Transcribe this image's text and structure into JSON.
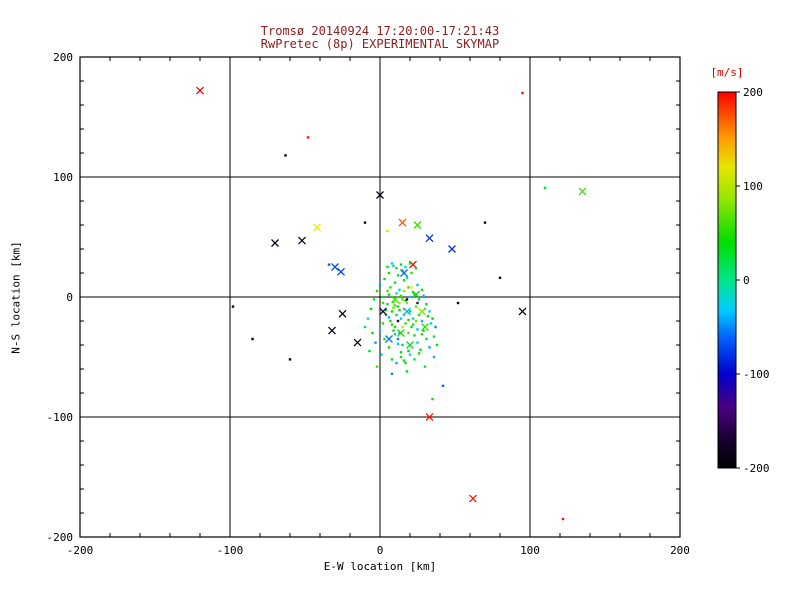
{
  "colors": {
    "background": "#ffffff",
    "axis": "#000000",
    "title_text": "#8b2020",
    "colorbar_title": "#d40000"
  },
  "chart_data": {
    "type": "scatter",
    "title": "Tromsø 20140924 17:20:00-17:21:43",
    "subtitle": "RwPretec (8p) EXPERIMENTAL SKYMAP",
    "xlabel": "E-W location [km]",
    "ylabel": "N-S location [km]",
    "xlim": [
      -200,
      200
    ],
    "ylim": [
      -200,
      200
    ],
    "xticks": [
      -200,
      -100,
      0,
      100,
      200
    ],
    "yticks": [
      -200,
      -100,
      0,
      100,
      200
    ],
    "grid_ticks": [
      -100,
      0,
      100
    ],
    "grid": true,
    "colorbar": {
      "title": "[m/s]",
      "min": -200,
      "max": 200,
      "ticks": [
        200,
        100,
        0,
        -100,
        -200
      ],
      "stops": [
        [
          0.0,
          "#000000"
        ],
        [
          0.08,
          "#1a0033"
        ],
        [
          0.16,
          "#4b0082"
        ],
        [
          0.25,
          "#0000cd"
        ],
        [
          0.35,
          "#0066ff"
        ],
        [
          0.42,
          "#00ccff"
        ],
        [
          0.5,
          "#00e68a"
        ],
        [
          0.6,
          "#00dd00"
        ],
        [
          0.72,
          "#99e600"
        ],
        [
          0.8,
          "#e6e600"
        ],
        [
          0.88,
          "#ff9900"
        ],
        [
          1.0,
          "#ff0000"
        ]
      ]
    },
    "value_units": "m/s",
    "points": [
      [
        -120,
        172,
        200,
        "x"
      ],
      [
        -48,
        133,
        195
      ],
      [
        -63,
        118,
        -190
      ],
      [
        95,
        170,
        195
      ],
      [
        135,
        88,
        55,
        "x"
      ],
      [
        110,
        91,
        25
      ],
      [
        -70,
        45,
        -185,
        "x"
      ],
      [
        -52,
        47,
        -185,
        "x"
      ],
      [
        -42,
        58,
        120,
        "x"
      ],
      [
        25,
        60,
        55,
        "x"
      ],
      [
        15,
        62,
        175,
        "x"
      ],
      [
        33,
        49,
        -80,
        "x"
      ],
      [
        0,
        85,
        -190,
        "x"
      ],
      [
        -30,
        25,
        -70,
        "x"
      ],
      [
        -26,
        21,
        -75,
        "x"
      ],
      [
        -34,
        27,
        -65
      ],
      [
        22,
        27,
        200,
        "x"
      ],
      [
        -25,
        -14,
        -190,
        "x"
      ],
      [
        -32,
        -28,
        -185,
        "x"
      ],
      [
        -15,
        -38,
        -185,
        "x"
      ],
      [
        33,
        -100,
        190,
        "x"
      ],
      [
        62,
        -168,
        195,
        "x"
      ],
      [
        122,
        -185,
        195
      ],
      [
        95,
        -12,
        -190,
        "x"
      ],
      [
        80,
        16,
        -185
      ],
      [
        48,
        40,
        -80,
        "x"
      ],
      [
        -85,
        -35,
        -185
      ],
      [
        -60,
        -52,
        -180
      ],
      [
        35,
        -85,
        45
      ],
      [
        42,
        -74,
        -60
      ],
      [
        70,
        62,
        -190
      ],
      [
        52,
        -5,
        -180
      ],
      [
        -10,
        62,
        -185
      ],
      [
        5,
        55,
        110
      ],
      [
        -98,
        -8,
        -185
      ],
      [
        18,
        -62,
        30
      ],
      [
        8,
        -64,
        -50
      ],
      [
        -2,
        -58,
        60
      ],
      [
        30,
        -58,
        20
      ],
      [
        36,
        -50,
        -40
      ],
      [
        6,
        2,
        40
      ],
      [
        9,
        -4,
        55
      ],
      [
        12,
        -8,
        30
      ],
      [
        15,
        -2,
        60
      ],
      [
        8,
        -12,
        45
      ],
      [
        11,
        -15,
        20
      ],
      [
        14,
        -18,
        -30
      ],
      [
        7,
        -20,
        50
      ],
      [
        10,
        -25,
        35
      ],
      [
        13,
        -30,
        -45
      ],
      [
        16,
        -10,
        70
      ],
      [
        5,
        -6,
        25
      ],
      [
        18,
        -5,
        80
      ],
      [
        20,
        -12,
        40
      ],
      [
        22,
        -18,
        -20
      ],
      [
        17,
        -22,
        55
      ],
      [
        9,
        -28,
        30
      ],
      [
        12,
        -35,
        -50
      ],
      [
        15,
        -40,
        20
      ],
      [
        19,
        -45,
        40
      ],
      [
        24,
        -8,
        65
      ],
      [
        26,
        -15,
        35
      ],
      [
        28,
        -20,
        -40
      ],
      [
        21,
        -25,
        50
      ],
      [
        23,
        -32,
        25
      ],
      [
        25,
        -38,
        -30
      ],
      [
        27,
        -44,
        45
      ],
      [
        30,
        -10,
        60
      ],
      [
        32,
        -16,
        30
      ],
      [
        34,
        -22,
        -25
      ],
      [
        29,
        -28,
        40
      ],
      [
        31,
        -35,
        20
      ],
      [
        33,
        -42,
        -45
      ],
      [
        4,
        -15,
        35
      ],
      [
        2,
        -22,
        50
      ],
      [
        0,
        -28,
        -30
      ],
      [
        3,
        -35,
        25
      ],
      [
        6,
        -42,
        40
      ],
      [
        1,
        -48,
        -20
      ],
      [
        8,
        -52,
        30
      ],
      [
        11,
        -55,
        -40
      ],
      [
        14,
        -50,
        25
      ],
      [
        17,
        -55,
        35
      ],
      [
        20,
        -48,
        -30
      ],
      [
        23,
        -52,
        20
      ],
      [
        26,
        -47,
        40
      ],
      [
        7,
        8,
        55
      ],
      [
        10,
        12,
        35
      ],
      [
        13,
        6,
        -25
      ],
      [
        16,
        14,
        45
      ],
      [
        19,
        8,
        60
      ],
      [
        22,
        4,
        30
      ],
      [
        25,
        10,
        -35
      ],
      [
        28,
        6,
        50
      ],
      [
        12,
        18,
        25
      ],
      [
        15,
        22,
        40
      ],
      [
        18,
        16,
        -30
      ],
      [
        21,
        20,
        55
      ],
      [
        24,
        24,
        35
      ],
      [
        9,
        26,
        -20
      ],
      [
        6,
        20,
        45
      ],
      [
        3,
        15,
        30
      ],
      [
        0,
        10,
        -40
      ],
      [
        -2,
        5,
        50
      ],
      [
        -4,
        -2,
        25
      ],
      [
        -6,
        -10,
        40
      ],
      [
        -8,
        -18,
        -30
      ],
      [
        -10,
        -25,
        20
      ],
      [
        -5,
        -30,
        35
      ],
      [
        -3,
        -38,
        -45
      ],
      [
        -7,
        -45,
        30
      ],
      [
        5,
        5,
        65
      ],
      [
        8,
        0,
        45
      ],
      [
        11,
        3,
        -30
      ],
      [
        14,
        1,
        55
      ],
      [
        17,
        -3,
        35
      ],
      [
        20,
        0,
        -25
      ],
      [
        23,
        2,
        50
      ],
      [
        26,
        -2,
        30
      ],
      [
        29,
        1,
        -40
      ],
      [
        10,
        -7,
        60
      ],
      [
        13,
        -11,
        40
      ],
      [
        16,
        -15,
        -30
      ],
      [
        19,
        -19,
        50
      ],
      [
        22,
        -23,
        25
      ],
      [
        25,
        -27,
        -35
      ],
      [
        28,
        -31,
        45
      ],
      [
        31,
        -6,
        30
      ],
      [
        33,
        -12,
        -20
      ],
      [
        35,
        -18,
        40
      ],
      [
        37,
        -25,
        -50
      ],
      [
        36,
        -33,
        25
      ],
      [
        38,
        -40,
        35
      ],
      [
        2,
        -5,
        55
      ],
      [
        4,
        -11,
        30
      ],
      [
        6,
        -17,
        -40
      ],
      [
        8,
        -23,
        50
      ],
      [
        10,
        -31,
        20
      ],
      [
        12,
        -39,
        -30
      ],
      [
        14,
        -46,
        40
      ],
      [
        16,
        -53,
        25
      ],
      [
        5,
        25,
        40
      ],
      [
        8,
        28,
        -30
      ],
      [
        11,
        24,
        55
      ],
      [
        14,
        27,
        35
      ],
      [
        17,
        25,
        -20
      ],
      [
        20,
        28,
        50
      ],
      [
        2,
        0,
        30
      ],
      [
        18,
        -2,
        -170
      ],
      [
        12,
        -20,
        -160
      ],
      [
        25,
        -5,
        -150
      ],
      [
        21,
        8,
        120
      ],
      [
        16,
        5,
        90
      ],
      [
        13,
        -5,
        100
      ],
      [
        9,
        -9,
        85
      ],
      [
        24,
        -20,
        75
      ],
      [
        19,
        -30,
        65
      ],
      [
        15,
        -25,
        95
      ],
      [
        10,
        -2,
        60,
        "x"
      ],
      [
        18,
        -12,
        -40,
        "x"
      ],
      [
        24,
        2,
        35,
        "x"
      ],
      [
        14,
        -30,
        50,
        "x"
      ],
      [
        6,
        -35,
        -55,
        "x"
      ],
      [
        28,
        -12,
        80,
        "x"
      ],
      [
        20,
        -40,
        30,
        "x"
      ],
      [
        2,
        -12,
        -170,
        "x"
      ],
      [
        30,
        -25,
        55,
        "x"
      ],
      [
        16,
        20,
        -60,
        "x"
      ]
    ]
  }
}
